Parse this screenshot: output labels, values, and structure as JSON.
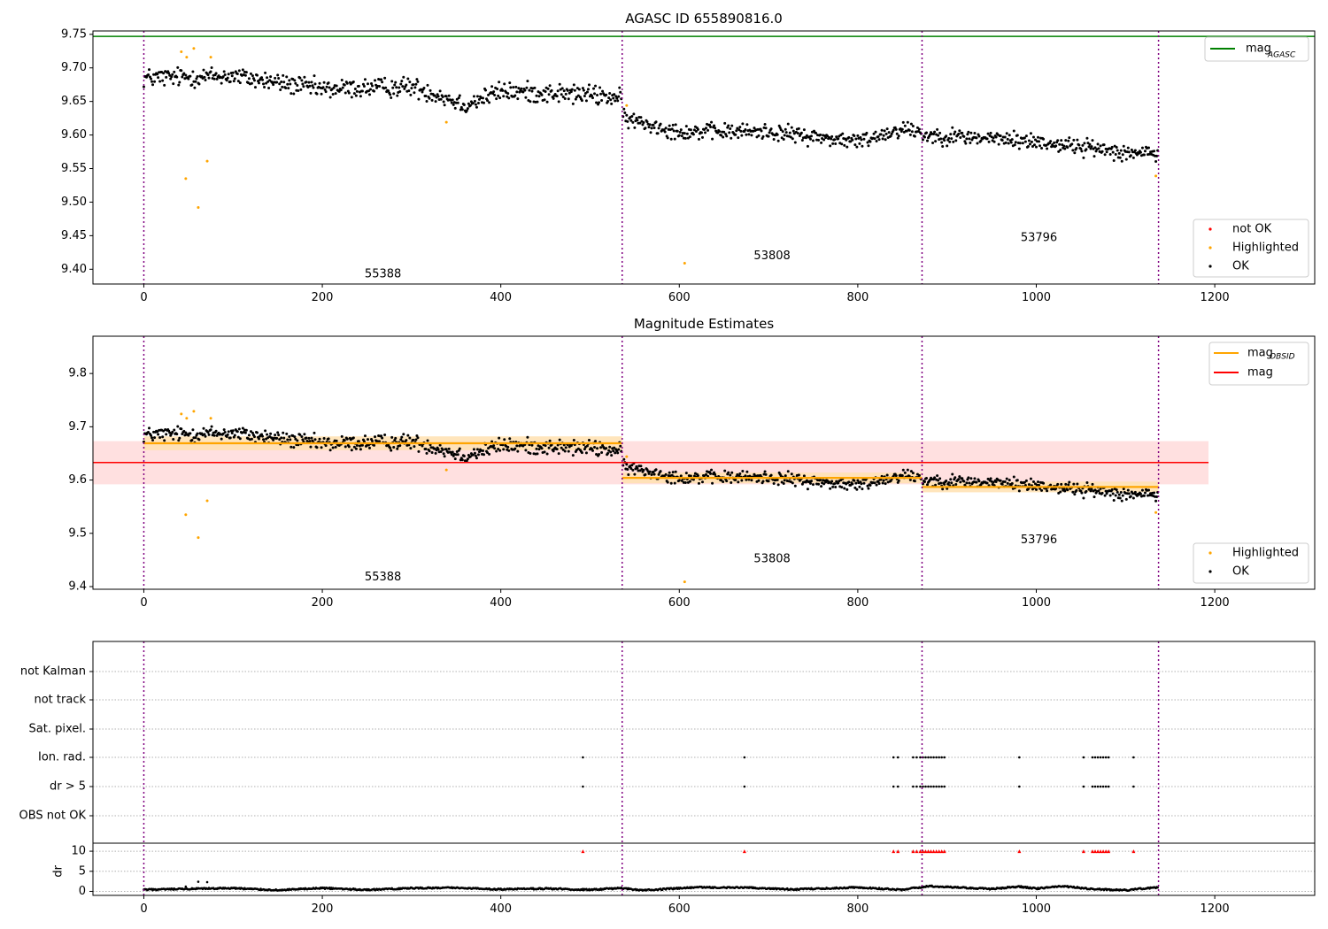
{
  "chart_data": [
    {
      "type": "scatter",
      "title": "AGASC ID 655890816.0",
      "xlim": [
        -57,
        1312
      ],
      "ylim": [
        9.378,
        9.755
      ],
      "x_ticks": [
        0,
        200,
        400,
        600,
        800,
        1000,
        1200
      ],
      "y_ticks": [
        9.4,
        9.45,
        9.5,
        9.55,
        9.6,
        9.65,
        9.7,
        9.75
      ],
      "y_tick_labels": [
        "9.40",
        "9.45",
        "9.50",
        "9.55",
        "9.60",
        "9.65",
        "9.70",
        "9.75"
      ],
      "obs_boundaries": [
        0,
        536,
        872,
        1137
      ],
      "obs_labels": [
        {
          "text": "55388",
          "x": 268,
          "y": 9.388
        },
        {
          "text": "53808",
          "x": 704,
          "y": 9.415
        },
        {
          "text": "53796",
          "x": 1003,
          "y": 9.442
        }
      ],
      "mag_agasc": 9.747,
      "mag_agasc_color": "#008000",
      "highlighted": [
        [
          42,
          9.724
        ],
        [
          47,
          9.535
        ],
        [
          48,
          9.716
        ],
        [
          56,
          9.729
        ],
        [
          61,
          9.492
        ],
        [
          71,
          9.561
        ],
        [
          75,
          9.716
        ],
        [
          339,
          9.619
        ],
        [
          541,
          9.644
        ],
        [
          606,
          9.409
        ],
        [
          1134,
          9.539
        ]
      ],
      "ok_segments": [
        {
          "x0": 0,
          "x1": 535,
          "trend": [
            [
              0,
              9.685
            ],
            [
              100,
              9.688
            ],
            [
              200,
              9.668
            ],
            [
              300,
              9.672
            ],
            [
              330,
              9.66
            ],
            [
              360,
              9.645
            ],
            [
              400,
              9.665
            ],
            [
              500,
              9.66
            ],
            [
              535,
              9.655
            ]
          ],
          "scatter": 0.012
        },
        {
          "x0": 537,
          "x1": 871,
          "trend": [
            [
              537,
              9.625
            ],
            [
              600,
              9.605
            ],
            [
              700,
              9.605
            ],
            [
              800,
              9.59
            ],
            [
              850,
              9.61
            ],
            [
              871,
              9.605
            ]
          ],
          "scatter": 0.01
        },
        {
          "x0": 873,
          "x1": 1136,
          "trend": [
            [
              873,
              9.6
            ],
            [
              950,
              9.595
            ],
            [
              1000,
              9.59
            ],
            [
              1100,
              9.575
            ],
            [
              1136,
              9.57
            ]
          ],
          "scatter": 0.01
        }
      ],
      "legend": [
        {
          "label": "mag",
          "sub": "AGASC",
          "kind": "line",
          "color": "#008000"
        }
      ],
      "legend2": [
        {
          "label": "not OK",
          "kind": "dot",
          "color": "#ff0000"
        },
        {
          "label": "Highlighted",
          "kind": "dot",
          "color": "#ffa500"
        },
        {
          "label": "OK",
          "kind": "dot",
          "color": "#000000"
        }
      ]
    },
    {
      "type": "scatter",
      "title": "Magnitude Estimates",
      "xlim": [
        -57,
        1312
      ],
      "ylim": [
        9.395,
        9.87
      ],
      "x_ticks": [
        0,
        200,
        400,
        600,
        800,
        1000,
        1200
      ],
      "y_ticks": [
        9.4,
        9.5,
        9.6,
        9.7,
        9.8
      ],
      "y_tick_labels": [
        "9.4",
        "9.5",
        "9.6",
        "9.7",
        "9.8"
      ],
      "obs_labels": [
        {
          "text": "55388",
          "x": 268,
          "y": 9.412
        },
        {
          "text": "53808",
          "x": 704,
          "y": 9.446
        },
        {
          "text": "53796",
          "x": 1003,
          "y": 9.481
        }
      ],
      "mag": 9.633,
      "mag_band": [
        9.592,
        9.673
      ],
      "mag_band_xlim": [
        -57,
        1193
      ],
      "mag_obsid": [
        {
          "x0": 0,
          "x1": 536,
          "value": 9.669,
          "band": [
            9.656,
            9.682
          ]
        },
        {
          "x0": 536,
          "x1": 872,
          "value": 9.604,
          "band": [
            9.594,
            9.614
          ]
        },
        {
          "x0": 872,
          "x1": 1137,
          "value": 9.587,
          "band": [
            9.577,
            9.597
          ]
        }
      ],
      "legend": [
        {
          "label": "mag",
          "sub": "OBSID",
          "kind": "line",
          "color": "#ffa500"
        },
        {
          "label": "mag",
          "sub": "",
          "kind": "line",
          "color": "#ff0000"
        }
      ],
      "legend2": [
        {
          "label": "Highlighted",
          "kind": "dot",
          "color": "#ffa500"
        },
        {
          "label": "OK",
          "kind": "dot",
          "color": "#000000"
        }
      ]
    },
    {
      "type": "scatter",
      "title": "",
      "xlim": [
        -57,
        1312
      ],
      "flag_rows": [
        "not Kalman",
        "not track",
        "Sat. pixel.",
        "Ion. rad.",
        "dr > 5",
        "OBS not OK"
      ],
      "flag_x": [
        492,
        673,
        840,
        845,
        862,
        866,
        870,
        873,
        876,
        879,
        882,
        885,
        888,
        891,
        894,
        897,
        981,
        1053,
        1063,
        1066,
        1069,
        1072,
        1075,
        1078,
        1081,
        1109
      ],
      "flag_rows_marked": [
        "Ion. rad.",
        "dr > 5"
      ],
      "dr_ylim": [
        -1,
        12
      ],
      "dr_ticks": [
        0,
        5,
        10
      ],
      "dr_ylabel": "dr",
      "dr_threshold": 10,
      "dr_profile": [
        [
          0,
          0.4
        ],
        [
          50,
          0.6
        ],
        [
          100,
          0.8
        ],
        [
          150,
          0.3
        ],
        [
          200,
          0.8
        ],
        [
          250,
          0.4
        ],
        [
          300,
          0.8
        ],
        [
          350,
          0.9
        ],
        [
          400,
          0.5
        ],
        [
          450,
          0.7
        ],
        [
          500,
          0.4
        ],
        [
          535,
          0.8
        ],
        [
          560,
          0.3
        ],
        [
          620,
          1.0
        ],
        [
          680,
          0.9
        ],
        [
          730,
          0.5
        ],
        [
          800,
          1.0
        ],
        [
          850,
          0.4
        ],
        [
          880,
          1.3
        ],
        [
          920,
          0.9
        ],
        [
          950,
          0.6
        ],
        [
          980,
          1.2
        ],
        [
          1000,
          0.7
        ],
        [
          1030,
          1.3
        ],
        [
          1060,
          0.6
        ],
        [
          1100,
          0.3
        ],
        [
          1136,
          1.0
        ]
      ],
      "dr_outliers": [
        [
          47,
          1.2
        ],
        [
          61,
          2.4
        ],
        [
          71,
          2.3
        ]
      ],
      "x_ticks": [
        0,
        200,
        400,
        600,
        800,
        1000,
        1200
      ]
    }
  ]
}
